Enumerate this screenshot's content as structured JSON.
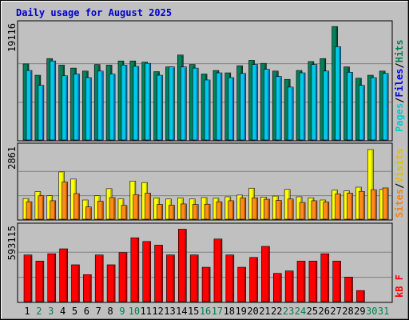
{
  "title": "Daily usage for August 2025",
  "colors": {
    "hits": "#00cccc",
    "files": "#0000ff",
    "pages": "#00cccc",
    "visits": "#ffff00",
    "sites": "#ff8000",
    "kbytes": "#ff0000",
    "weekend_label": "#00804c",
    "weekday_label": "#000000",
    "background": "#c0c0c0"
  },
  "legend": {
    "top": {
      "pages": "Pages",
      "sep1": "/",
      "files": "Files",
      "sep2": "/",
      "hits": "Hits"
    },
    "mid": {
      "sites": "Sites",
      "sep1": "/",
      "visits": "Visits"
    },
    "bot": {
      "kbf": "kB F"
    }
  },
  "chart_data": [
    {
      "type": "bar",
      "panel": "hits-files",
      "ymax_label": "19116",
      "ylim": [
        0,
        19116
      ],
      "categories": [
        "1",
        "2",
        "3",
        "4",
        "5",
        "6",
        "7",
        "8",
        "9",
        "10",
        "11",
        "12",
        "13",
        "14",
        "15",
        "16",
        "17",
        "18",
        "19",
        "20",
        "21",
        "22",
        "23",
        "24",
        "25",
        "26",
        "27",
        "28",
        "29",
        "30",
        "31"
      ],
      "weekend_days": [
        "2",
        "3",
        "9",
        "10",
        "16",
        "17",
        "23",
        "24",
        "30",
        "31"
      ],
      "series": [
        {
          "name": "Hits",
          "values": [
            12800,
            10900,
            13700,
            12600,
            12100,
            11600,
            12700,
            12600,
            13300,
            13300,
            13100,
            11500,
            12300,
            14300,
            12700,
            11100,
            11700,
            11300,
            12500,
            13400,
            12900,
            11600,
            10200,
            11700,
            13200,
            13700,
            19100,
            12300,
            10400,
            10900,
            11600
          ]
        },
        {
          "name": "Files",
          "values": [
            11700,
            9200,
            13300,
            10800,
            11100,
            10500,
            11600,
            11100,
            12600,
            12400,
            12900,
            10900,
            12300,
            12300,
            12100,
            10100,
            11300,
            10500,
            11200,
            12700,
            11900,
            10700,
            8900,
            11300,
            12700,
            11600,
            15700,
            11400,
            9200,
            10500,
            11200
          ]
        }
      ]
    },
    {
      "type": "bar",
      "panel": "visits-sites",
      "ymax_label": "2861",
      "ylim": [
        0,
        2861
      ],
      "categories": [
        "1",
        "2",
        "3",
        "4",
        "5",
        "6",
        "7",
        "8",
        "9",
        "10",
        "11",
        "12",
        "13",
        "14",
        "15",
        "16",
        "17",
        "18",
        "19",
        "20",
        "21",
        "22",
        "23",
        "24",
        "25",
        "26",
        "27",
        "28",
        "29",
        "30",
        "31"
      ],
      "series": [
        {
          "name": "Visits",
          "values": [
            840,
            1120,
            950,
            1920,
            1630,
            780,
            950,
            1240,
            830,
            1550,
            1490,
            860,
            820,
            860,
            820,
            880,
            850,
            910,
            980,
            1260,
            900,
            940,
            1210,
            910,
            870,
            780,
            1180,
            1150,
            1300,
            2830,
            1210
          ]
        },
        {
          "name": "Sites",
          "values": [
            710,
            950,
            750,
            1510,
            1040,
            500,
            730,
            880,
            560,
            1000,
            1060,
            600,
            570,
            620,
            600,
            610,
            710,
            750,
            860,
            870,
            810,
            760,
            820,
            680,
            750,
            700,
            1030,
            1060,
            1130,
            1200,
            1270
          ]
        }
      ]
    },
    {
      "type": "bar",
      "panel": "kbytes",
      "ymax_label": "593115",
      "ylim": [
        0,
        593115
      ],
      "categories": [
        "1",
        "2",
        "3",
        "4",
        "5",
        "6",
        "7",
        "8",
        "9",
        "10",
        "11",
        "12",
        "13",
        "14",
        "15",
        "16",
        "17",
        "18",
        "19",
        "20",
        "21",
        "22",
        "23",
        "24",
        "25",
        "26",
        "27",
        "28",
        "29",
        "30",
        "31"
      ],
      "series": [
        {
          "name": "kB F",
          "values": [
            380000,
            330000,
            390000,
            430000,
            300000,
            220000,
            380000,
            300000,
            400000,
            520000,
            490000,
            460000,
            380000,
            590000,
            380000,
            280000,
            510000,
            380000,
            280000,
            360000,
            450000,
            230000,
            250000,
            330000,
            330000,
            390000,
            330000,
            200000,
            90000,
            0,
            0
          ]
        }
      ]
    }
  ]
}
